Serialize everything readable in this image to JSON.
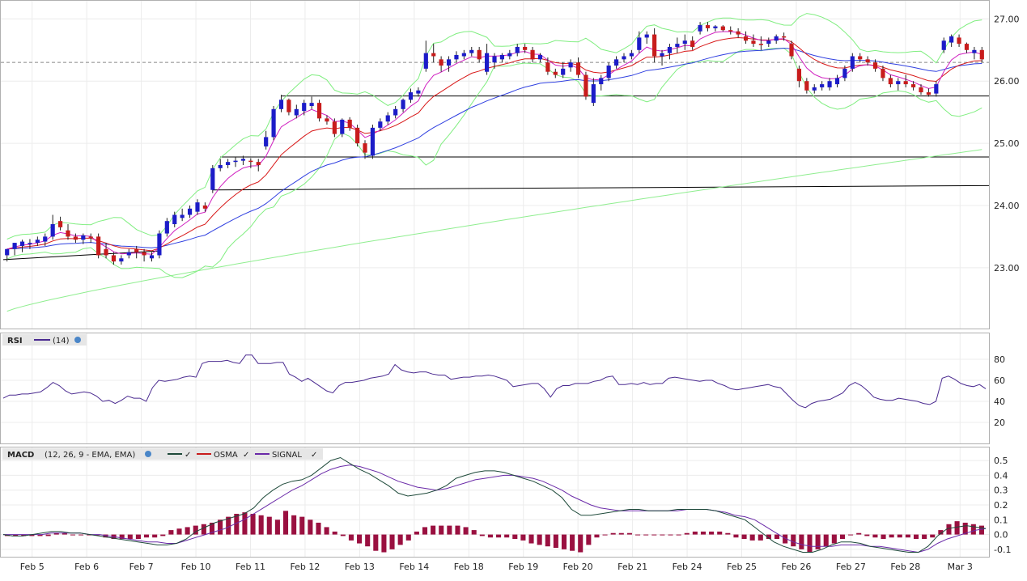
{
  "panels": {
    "price": {
      "yticks": [
        "27.00",
        "26.00",
        "25.00",
        "24.00",
        "23.00"
      ]
    },
    "rsi": {
      "label": "RSI",
      "params": "(14)",
      "yticks": [
        "80",
        "60",
        "40",
        "20"
      ]
    },
    "macd": {
      "label": "MACD",
      "params": "(12, 26, 9 - EMA, EMA)",
      "legend": [
        "OSMA",
        "SIGNAL"
      ],
      "yticks": [
        "0.5",
        "0.4",
        "0.3",
        "0.2",
        "0.1",
        "0.0",
        "-0.1"
      ]
    }
  },
  "colors": {
    "up_candle": "#1c1cc8",
    "down_candle": "#c81c1c",
    "bollinger": "#80ee80",
    "ma_fast": "#d020c0",
    "ma_mid": "#d81818",
    "ma_slow": "#3040e0",
    "ma_long": "#90ee90",
    "rsi_line": "#4a2a90",
    "macd_line": "#1e4a3a",
    "signal_line": "#6a2aa8",
    "osma_bars": "#9a1040"
  },
  "chart_data": {
    "type": "line",
    "x_labels": [
      "Feb 5",
      "Feb 6",
      "Feb 7",
      "Feb 10",
      "Feb 11",
      "Feb 12",
      "Feb 13",
      "Feb 14",
      "Feb 18",
      "Feb 19",
      "Feb 20",
      "Feb 21",
      "Feb 24",
      "Feb 25",
      "Feb 26",
      "Feb 27",
      "Feb 28",
      "Mar 3"
    ],
    "price": {
      "ylim": [
        22.1,
        27.2
      ],
      "reference_line": 26.3,
      "horizontal_lines": [
        25.76,
        24.78
      ],
      "trendlines": [
        {
          "from_day": 0,
          "from_value": 23.13,
          "to_day": 4,
          "to_value": 23.27
        },
        {
          "from_day": 4,
          "from_value": 24.25,
          "to_day": 18,
          "to_value": 24.32
        }
      ],
      "candles": [
        [
          23.2,
          23.3,
          23.1,
          23.3
        ],
        [
          23.3,
          23.4,
          23.2,
          23.4
        ],
        [
          23.35,
          23.45,
          23.25,
          23.42
        ],
        [
          23.38,
          23.46,
          23.3,
          23.4
        ],
        [
          23.4,
          23.5,
          23.35,
          23.45
        ],
        [
          23.42,
          23.55,
          23.35,
          23.5
        ],
        [
          23.5,
          23.85,
          23.45,
          23.7
        ],
        [
          23.75,
          23.82,
          23.6,
          23.65
        ],
        [
          23.6,
          23.7,
          23.45,
          23.5
        ],
        [
          23.5,
          23.55,
          23.4,
          23.45
        ],
        [
          23.45,
          23.55,
          23.38,
          23.52
        ],
        [
          23.5,
          23.55,
          23.4,
          23.48
        ],
        [
          23.5,
          23.55,
          23.15,
          23.2
        ],
        [
          23.3,
          23.4,
          23.15,
          23.2
        ],
        [
          23.2,
          23.25,
          23.05,
          23.1
        ],
        [
          23.1,
          23.2,
          23.05,
          23.15
        ],
        [
          23.2,
          23.3,
          23.15,
          23.25
        ],
        [
          23.3,
          23.35,
          23.15,
          23.25
        ],
        [
          23.25,
          23.3,
          23.1,
          23.2
        ],
        [
          23.15,
          23.25,
          23.1,
          23.2
        ],
        [
          23.2,
          23.6,
          23.15,
          23.55
        ],
        [
          23.55,
          23.8,
          23.5,
          23.75
        ],
        [
          23.7,
          23.9,
          23.65,
          23.85
        ],
        [
          23.8,
          23.95,
          23.75,
          23.85
        ],
        [
          23.85,
          24.0,
          23.8,
          23.95
        ],
        [
          23.9,
          24.1,
          23.85,
          24.05
        ],
        [
          24.0,
          24.05,
          23.9,
          23.95
        ],
        [
          24.25,
          24.65,
          24.2,
          24.6
        ],
        [
          24.6,
          24.75,
          24.55,
          24.65
        ],
        [
          24.65,
          24.75,
          24.6,
          24.7
        ],
        [
          24.7,
          24.78,
          24.62,
          24.72
        ],
        [
          24.72,
          24.8,
          24.65,
          24.75
        ],
        [
          24.72,
          24.76,
          24.6,
          24.7
        ],
        [
          24.7,
          24.75,
          24.55,
          24.65
        ],
        [
          24.95,
          25.2,
          24.9,
          25.1
        ],
        [
          25.1,
          25.6,
          25.05,
          25.55
        ],
        [
          25.55,
          25.78,
          25.5,
          25.7
        ],
        [
          25.7,
          25.72,
          25.45,
          25.5
        ],
        [
          25.45,
          25.62,
          25.4,
          25.55
        ],
        [
          25.52,
          25.7,
          25.45,
          25.65
        ],
        [
          25.6,
          25.75,
          25.55,
          25.65
        ],
        [
          25.65,
          25.7,
          25.35,
          25.4
        ],
        [
          25.4,
          25.45,
          25.3,
          25.35
        ],
        [
          25.35,
          25.4,
          25.1,
          25.15
        ],
        [
          25.15,
          25.4,
          25.1,
          25.38
        ],
        [
          25.38,
          25.42,
          25.2,
          25.25
        ],
        [
          25.25,
          25.3,
          24.95,
          25.0
        ],
        [
          25.0,
          25.05,
          24.75,
          24.85
        ],
        [
          24.8,
          25.3,
          24.75,
          25.25
        ],
        [
          25.25,
          25.4,
          25.2,
          25.35
        ],
        [
          25.35,
          25.5,
          25.3,
          25.45
        ],
        [
          25.45,
          25.6,
          25.4,
          25.55
        ],
        [
          25.55,
          25.72,
          25.5,
          25.7
        ],
        [
          25.7,
          25.88,
          25.65,
          25.82
        ],
        [
          25.8,
          25.9,
          25.75,
          25.85
        ],
        [
          26.2,
          26.65,
          26.15,
          26.45
        ],
        [
          26.45,
          26.6,
          26.3,
          26.4
        ],
        [
          26.35,
          26.4,
          26.15,
          26.25
        ],
        [
          26.25,
          26.4,
          26.15,
          26.35
        ],
        [
          26.35,
          26.48,
          26.3,
          26.42
        ],
        [
          26.4,
          26.5,
          26.35,
          26.45
        ],
        [
          26.45,
          26.55,
          26.4,
          26.5
        ],
        [
          26.5,
          26.55,
          26.3,
          26.35
        ],
        [
          26.15,
          26.6,
          26.1,
          26.45
        ],
        [
          26.3,
          26.45,
          26.2,
          26.4
        ],
        [
          26.35,
          26.45,
          26.3,
          26.42
        ],
        [
          26.4,
          26.5,
          26.35,
          26.45
        ],
        [
          26.45,
          26.6,
          26.4,
          26.55
        ],
        [
          26.55,
          26.6,
          26.45,
          26.5
        ],
        [
          26.5,
          26.55,
          26.3,
          26.35
        ],
        [
          26.35,
          26.45,
          26.3,
          26.42
        ],
        [
          26.3,
          26.38,
          26.1,
          26.15
        ],
        [
          26.15,
          26.2,
          26.05,
          26.1
        ],
        [
          26.1,
          26.3,
          26.05,
          26.2
        ],
        [
          26.22,
          26.35,
          26.15,
          26.3
        ],
        [
          26.3,
          26.38,
          26.05,
          26.1
        ],
        [
          26.1,
          26.15,
          25.7,
          25.75
        ],
        [
          25.65,
          26.05,
          25.6,
          25.95
        ],
        [
          25.95,
          26.1,
          25.85,
          26.05
        ],
        [
          26.05,
          26.3,
          26.0,
          26.25
        ],
        [
          26.25,
          26.4,
          26.2,
          26.35
        ],
        [
          26.35,
          26.45,
          26.3,
          26.4
        ],
        [
          26.4,
          26.5,
          26.35,
          26.45
        ],
        [
          26.5,
          26.8,
          26.45,
          26.7
        ],
        [
          26.7,
          26.8,
          26.6,
          26.75
        ],
        [
          26.75,
          26.85,
          26.3,
          26.4
        ],
        [
          26.4,
          26.5,
          26.25,
          26.45
        ],
        [
          26.45,
          26.6,
          26.35,
          26.55
        ],
        [
          26.55,
          26.7,
          26.45,
          26.6
        ],
        [
          26.6,
          26.75,
          26.5,
          26.65
        ],
        [
          26.65,
          26.72,
          26.5,
          26.55
        ],
        [
          26.8,
          26.95,
          26.75,
          26.9
        ],
        [
          26.9,
          26.95,
          26.8,
          26.85
        ],
        [
          26.85,
          26.9,
          26.8,
          26.88
        ],
        [
          26.88,
          26.9,
          26.8,
          26.82
        ],
        [
          26.82,
          26.88,
          26.75,
          26.8
        ],
        [
          26.8,
          26.85,
          26.7,
          26.75
        ],
        [
          26.72,
          26.8,
          26.6,
          26.65
        ],
        [
          26.65,
          26.75,
          26.55,
          26.6
        ],
        [
          26.6,
          26.72,
          26.5,
          26.58
        ],
        [
          26.6,
          26.7,
          26.55,
          26.65
        ],
        [
          26.65,
          26.75,
          26.6,
          26.72
        ],
        [
          26.72,
          26.78,
          26.65,
          26.7
        ],
        [
          26.6,
          26.65,
          26.35,
          26.4
        ],
        [
          26.2,
          26.25,
          25.9,
          26.0
        ],
        [
          26.0,
          26.05,
          25.8,
          25.85
        ],
        [
          25.85,
          25.95,
          25.8,
          25.9
        ],
        [
          25.9,
          26.0,
          25.85,
          25.95
        ],
        [
          25.9,
          26.05,
          25.85,
          26.0
        ],
        [
          25.95,
          26.1,
          25.9,
          26.05
        ],
        [
          26.05,
          26.25,
          26.0,
          26.2
        ],
        [
          26.2,
          26.45,
          26.15,
          26.4
        ],
        [
          26.4,
          26.45,
          26.3,
          26.35
        ],
        [
          26.35,
          26.4,
          26.25,
          26.3
        ],
        [
          26.3,
          26.35,
          26.15,
          26.2
        ],
        [
          26.2,
          26.25,
          26.0,
          26.05
        ],
        [
          26.05,
          26.1,
          25.9,
          25.95
        ],
        [
          25.95,
          26.05,
          25.85,
          26.0
        ],
        [
          26.0,
          26.1,
          25.9,
          25.95
        ],
        [
          25.95,
          26.0,
          25.85,
          25.9
        ],
        [
          25.9,
          25.95,
          25.78,
          25.82
        ],
        [
          25.82,
          25.88,
          25.75,
          25.78
        ],
        [
          25.8,
          26.0,
          25.75,
          25.95
        ],
        [
          26.5,
          26.7,
          26.45,
          26.65
        ],
        [
          26.62,
          26.75,
          26.55,
          26.72
        ],
        [
          26.7,
          26.75,
          26.55,
          26.6
        ],
        [
          26.6,
          26.62,
          26.45,
          26.5
        ],
        [
          26.45,
          26.55,
          26.35,
          26.5
        ],
        [
          26.5,
          26.55,
          26.3,
          26.35
        ]
      ]
    },
    "rsi": {
      "ylim": [
        0,
        100
      ],
      "values": [
        43,
        46,
        46,
        47,
        47,
        48,
        49,
        53,
        58,
        55,
        50,
        47,
        48,
        49,
        48,
        45,
        40,
        41,
        38,
        41,
        45,
        43,
        43,
        40,
        53,
        60,
        59,
        60,
        61,
        63,
        64,
        63,
        76,
        78,
        78,
        78,
        79,
        77,
        76,
        84,
        84,
        76,
        76,
        76,
        77,
        77,
        66,
        63,
        59,
        62,
        58,
        54,
        50,
        48,
        55,
        58,
        58,
        59,
        60,
        62,
        63,
        64,
        66,
        75,
        70,
        68,
        67,
        68,
        68,
        66,
        65,
        65,
        61,
        62,
        63,
        63,
        64,
        64,
        65,
        64,
        62,
        60,
        54,
        55,
        56,
        57,
        57,
        52,
        44,
        52,
        55,
        55,
        57,
        57,
        57,
        59,
        60,
        63,
        64,
        56,
        56,
        57,
        56,
        58,
        56,
        57,
        57,
        62,
        63,
        62,
        61,
        60,
        59,
        60,
        60,
        57,
        55,
        52,
        51,
        52,
        53,
        54,
        55,
        56,
        54,
        53,
        47,
        41,
        36,
        34,
        38,
        40,
        41,
        42,
        45,
        48,
        55,
        58,
        55,
        50,
        44,
        42,
        41,
        41,
        43,
        42,
        41,
        40,
        38,
        37,
        40,
        62,
        64,
        61,
        57,
        55,
        54,
        56,
        52
      ]
    },
    "macd": {
      "ylim": [
        -0.15,
        0.55
      ],
      "macd_line": [
        0.0,
        -0.01,
        -0.01,
        0.0,
        0.01,
        0.02,
        0.02,
        0.01,
        0.01,
        0.0,
        -0.01,
        -0.02,
        -0.03,
        -0.04,
        -0.05,
        -0.06,
        -0.07,
        -0.07,
        -0.06,
        -0.03,
        0.02,
        0.05,
        0.08,
        0.1,
        0.12,
        0.14,
        0.18,
        0.25,
        0.3,
        0.34,
        0.36,
        0.37,
        0.4,
        0.45,
        0.5,
        0.52,
        0.48,
        0.44,
        0.41,
        0.37,
        0.33,
        0.28,
        0.26,
        0.27,
        0.28,
        0.3,
        0.33,
        0.38,
        0.4,
        0.42,
        0.43,
        0.43,
        0.42,
        0.4,
        0.38,
        0.36,
        0.33,
        0.3,
        0.25,
        0.17,
        0.13,
        0.13,
        0.14,
        0.15,
        0.16,
        0.17,
        0.17,
        0.16,
        0.16,
        0.16,
        0.17,
        0.17,
        0.17,
        0.17,
        0.16,
        0.14,
        0.12,
        0.1,
        0.05,
        0.0,
        -0.05,
        -0.08,
        -0.1,
        -0.12,
        -0.12,
        -0.1,
        -0.07,
        -0.05,
        -0.05,
        -0.06,
        -0.08,
        -0.09,
        -0.1,
        -0.11,
        -0.12,
        -0.12,
        -0.08,
        -0.01,
        0.04,
        0.05,
        0.06,
        0.05,
        0.04
      ],
      "signal_line": [
        0.0,
        0.0,
        0.0,
        0.0,
        0.0,
        0.01,
        0.01,
        0.01,
        0.01,
        0.0,
        0.0,
        -0.01,
        -0.02,
        -0.03,
        -0.04,
        -0.05,
        -0.05,
        -0.06,
        -0.06,
        -0.04,
        -0.02,
        0.0,
        0.02,
        0.04,
        0.07,
        0.1,
        0.14,
        0.18,
        0.22,
        0.26,
        0.3,
        0.33,
        0.37,
        0.41,
        0.44,
        0.46,
        0.47,
        0.46,
        0.44,
        0.42,
        0.39,
        0.36,
        0.34,
        0.32,
        0.31,
        0.3,
        0.31,
        0.33,
        0.35,
        0.37,
        0.38,
        0.39,
        0.4,
        0.4,
        0.39,
        0.38,
        0.36,
        0.33,
        0.3,
        0.26,
        0.23,
        0.2,
        0.18,
        0.17,
        0.16,
        0.16,
        0.16,
        0.16,
        0.16,
        0.16,
        0.16,
        0.17,
        0.17,
        0.17,
        0.16,
        0.15,
        0.13,
        0.12,
        0.1,
        0.06,
        0.02,
        -0.02,
        -0.05,
        -0.07,
        -0.08,
        -0.08,
        -0.08,
        -0.07,
        -0.07,
        -0.07,
        -0.08,
        -0.08,
        -0.09,
        -0.1,
        -0.11,
        -0.12,
        -0.1,
        -0.06,
        -0.03,
        -0.01,
        0.01,
        0.03,
        0.04
      ],
      "osma": [
        -0.01,
        -0.01,
        -0.01,
        -0.01,
        -0.01,
        -0.01,
        0.01,
        0.01,
        0.0,
        0.0,
        0.0,
        0.0,
        -0.02,
        -0.03,
        -0.03,
        -0.03,
        -0.03,
        -0.02,
        -0.02,
        -0.01,
        0.03,
        0.04,
        0.05,
        0.06,
        0.07,
        0.08,
        0.1,
        0.12,
        0.14,
        0.15,
        0.14,
        0.13,
        0.12,
        0.1,
        0.16,
        0.13,
        0.12,
        0.1,
        0.08,
        0.05,
        0.02,
        -0.01,
        -0.04,
        -0.06,
        -0.08,
        -0.11,
        -0.12,
        -0.1,
        -0.07,
        -0.04,
        0.02,
        0.05,
        0.06,
        0.06,
        0.06,
        0.06,
        0.05,
        0.03,
        -0.01,
        -0.02,
        -0.02,
        -0.02,
        -0.03,
        -0.04,
        -0.06,
        -0.07,
        -0.08,
        -0.09,
        -0.1,
        -0.11,
        -0.12,
        -0.07,
        -0.02,
        0.0,
        0.01,
        0.01,
        0.01,
        0.0,
        0.0,
        0.0,
        0.0,
        0.0,
        0.0,
        0.01,
        0.02,
        0.02,
        0.02,
        0.02,
        0.01,
        -0.02,
        -0.03,
        -0.04,
        -0.04,
        -0.03,
        -0.03,
        -0.06,
        -0.08,
        -0.1,
        -0.12,
        -0.1,
        -0.08,
        -0.06,
        -0.03,
        0.0,
        0.01,
        -0.01,
        -0.02,
        -0.03,
        -0.02,
        -0.02,
        -0.02,
        -0.03,
        -0.03,
        -0.02,
        0.03,
        0.07,
        0.09,
        0.08,
        0.07,
        0.06
      ]
    }
  }
}
